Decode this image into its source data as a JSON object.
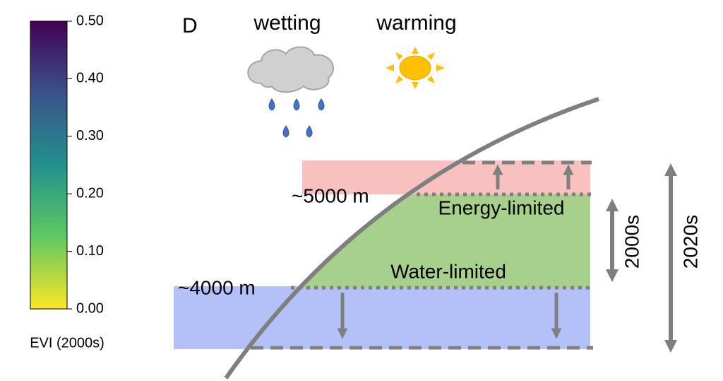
{
  "colorbar": {
    "label": "EVI (2000s)",
    "range": [
      0,
      0.5
    ],
    "ticks": [
      {
        "value": 0,
        "label": "0.00"
      },
      {
        "value": 0.1,
        "label": "0.10"
      },
      {
        "value": 0.2,
        "label": "0.20"
      },
      {
        "value": 0.3,
        "label": "0.30"
      },
      {
        "value": 0.4,
        "label": "0.40"
      },
      {
        "value": 0.5,
        "label": "0.50"
      }
    ]
  },
  "panel": {
    "label": "D",
    "wetting": "wetting",
    "warming": "warming",
    "upper_elevation": "~5000 m",
    "lower_elevation": "~4000 m",
    "energy_zone": "Energy-limited",
    "water_zone": "Water-limited",
    "period_early": "2000s",
    "period_late": "2020s"
  }
}
